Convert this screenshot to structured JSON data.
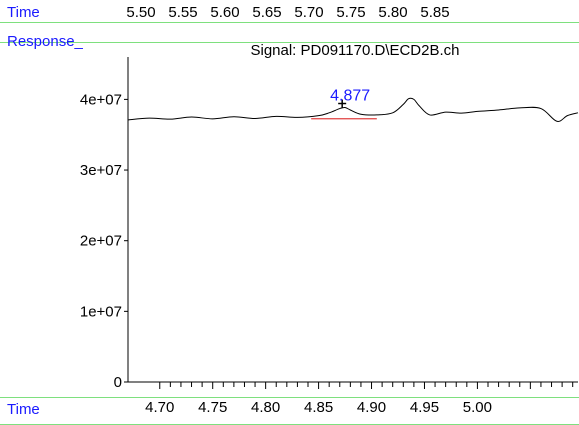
{
  "header": {
    "top_left_label": "Time",
    "top_time_ticks": [
      "5.50",
      "5.55",
      "5.60",
      "5.65",
      "5.70",
      "5.75",
      "5.80",
      "5.85"
    ],
    "response_label": "Response_",
    "bottom_left_label": "Time"
  },
  "colors": {
    "label_blue": "#1a1aff",
    "band_green": "#7ee07e",
    "baseline_red": "#e04040",
    "trace_black": "#000000"
  },
  "chart_data": {
    "type": "line",
    "title": "Signal: PD091170.D\\ECD2B.ch",
    "xlabel": "Time",
    "ylabel": "Response_",
    "xlim": [
      4.67,
      5.095
    ],
    "ylim": [
      0,
      46000000
    ],
    "x_ticks": [
      "4.70",
      "4.75",
      "4.80",
      "4.85",
      "4.90",
      "4.95",
      "5.00"
    ],
    "y_ticks": [
      {
        "value": 0,
        "label": "0"
      },
      {
        "value": 10000000,
        "label": "1e+07"
      },
      {
        "value": 20000000,
        "label": "2e+07"
      },
      {
        "value": 30000000,
        "label": "3e+07"
      },
      {
        "value": 40000000,
        "label": "4e+07"
      }
    ],
    "series": [
      {
        "x": [
          4.67,
          4.69,
          4.71,
          4.73,
          4.75,
          4.77,
          4.79,
          4.81,
          4.83,
          4.85,
          4.86,
          4.87,
          4.875,
          4.88,
          4.89,
          4.905,
          4.92,
          4.93,
          4.935,
          4.94,
          4.945,
          4.955,
          4.97,
          4.985,
          5.0,
          5.02,
          5.04,
          5.06,
          5.075,
          5.085,
          5.095
        ],
        "y": [
          37100000,
          37350000,
          37200000,
          37500000,
          37250000,
          37550000,
          37300000,
          37600000,
          37450000,
          37700000,
          38100000,
          38700000,
          38850000,
          38500000,
          37900000,
          37800000,
          38100000,
          39300000,
          40100000,
          40000000,
          39100000,
          37800000,
          38200000,
          38050000,
          38300000,
          38500000,
          38800000,
          38700000,
          36900000,
          37700000,
          38100000
        ]
      }
    ],
    "peak": {
      "label": "4.877",
      "x": 4.877,
      "y": 38850000
    },
    "baseline": {
      "x": [
        4.843,
        4.905
      ],
      "y": [
        37400000,
        37400000
      ]
    }
  }
}
